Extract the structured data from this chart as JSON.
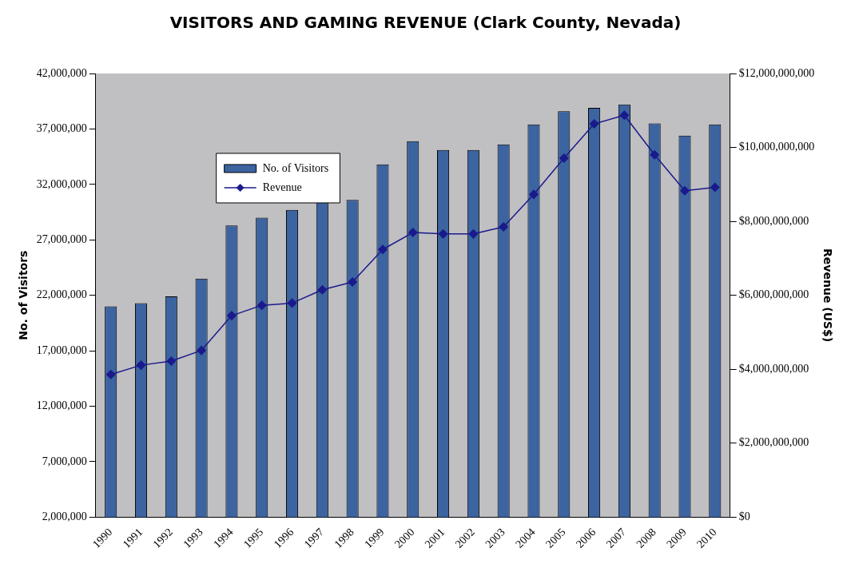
{
  "chart_data": {
    "type": "bar",
    "title": "VISITORS AND GAMING REVENUE (Clark County, Nevada)",
    "ylabel": "No. of Visitors",
    "y2label": "Revenue (US$)",
    "categories": [
      "1990",
      "1991",
      "1992",
      "1993",
      "1994",
      "1995",
      "1996",
      "1997",
      "1998",
      "1999",
      "2000",
      "2001",
      "2002",
      "2003",
      "2004",
      "2005",
      "2006",
      "2007",
      "2008",
      "2009",
      "2010"
    ],
    "series": [
      {
        "name": "No. of Visitors",
        "color": "#3b64a0",
        "values": [
          21000000,
          21300000,
          21900000,
          23500000,
          28300000,
          29000000,
          29700000,
          30500000,
          30600000,
          33800000,
          35900000,
          35100000,
          35100000,
          35600000,
          37400000,
          38600000,
          38900000,
          39200000,
          37500000,
          36400000,
          37400000
        ]
      },
      {
        "name": "Revenue",
        "type": "line",
        "axis": "y2",
        "color": "#1a1a8c",
        "marker": "diamond",
        "values": [
          3860000000,
          4110000000,
          4220000000,
          4510000000,
          5450000000,
          5730000000,
          5790000000,
          6150000000,
          6360000000,
          7240000000,
          7700000000,
          7660000000,
          7660000000,
          7850000000,
          8730000000,
          9710000000,
          10640000000,
          10870000000,
          9800000000,
          8830000000,
          8920000000
        ]
      }
    ],
    "ylim": [
      2000000,
      42000000
    ],
    "yticks": [
      {
        "value": 2000000,
        "label": "2,000,000"
      },
      {
        "value": 7000000,
        "label": "7,000,000"
      },
      {
        "value": 12000000,
        "label": "12,000,000"
      },
      {
        "value": 17000000,
        "label": "17,000,000"
      },
      {
        "value": 22000000,
        "label": "22,000,000"
      },
      {
        "value": 27000000,
        "label": "27,000,000"
      },
      {
        "value": 32000000,
        "label": "32,000,000"
      },
      {
        "value": 37000000,
        "label": "37,000,000"
      },
      {
        "value": 42000000,
        "label": "42,000,000"
      }
    ],
    "y2lim": [
      0,
      12000000000
    ],
    "y2ticks": [
      {
        "value": 0,
        "label": "$0"
      },
      {
        "value": 2000000000,
        "label": "$2,000,000,000"
      },
      {
        "value": 4000000000,
        "label": "$4,000,000,000"
      },
      {
        "value": 6000000000,
        "label": "$6,000,000,000"
      },
      {
        "value": 8000000000,
        "label": "$8,000,000,000"
      },
      {
        "value": 10000000000,
        "label": "$10,000,000,000"
      },
      {
        "value": 12000000000,
        "label": "$12,000,000,000"
      }
    ],
    "grid": false,
    "legend": "top left"
  }
}
